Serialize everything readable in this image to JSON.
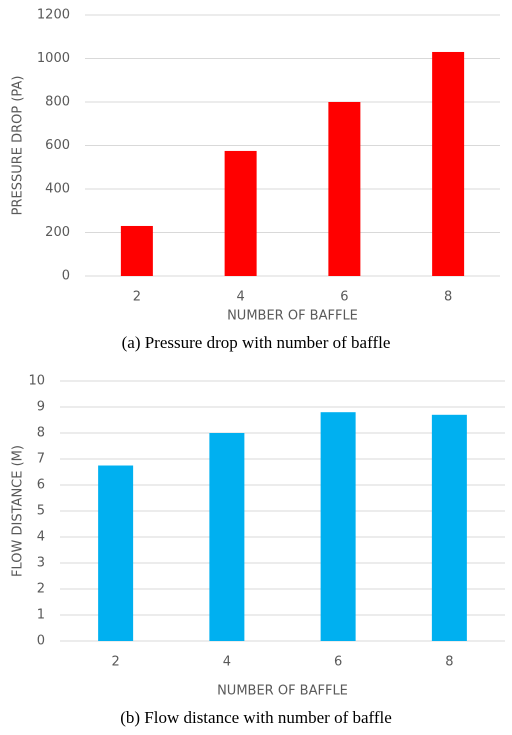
{
  "chart_data": [
    {
      "type": "bar",
      "caption": "(a) Pressure drop with number of baffle",
      "x_label": "NUMBER OF BAFFLE",
      "y_label": "PRESSURE DROP (PA)",
      "categories": [
        "2",
        "4",
        "6",
        "8"
      ],
      "values": [
        230,
        575,
        800,
        1030
      ],
      "color": "#ff0000",
      "ylim": [
        0,
        1200
      ],
      "yticks": [
        0,
        200,
        400,
        600,
        800,
        1000,
        1200
      ],
      "grid": true
    },
    {
      "type": "bar",
      "caption": "(b) Flow distance with number of baffle",
      "x_label": "NUMBER OF BAFFLE",
      "y_label": "FLOW DISTANCE (M)",
      "categories": [
        "2",
        "4",
        "6",
        "8"
      ],
      "values": [
        6.75,
        8.0,
        8.8,
        8.7
      ],
      "color": "#00b0f0",
      "ylim": [
        0,
        10
      ],
      "yticks": [
        0,
        1,
        2,
        3,
        4,
        5,
        6,
        7,
        8,
        9,
        10
      ],
      "grid": true
    }
  ]
}
